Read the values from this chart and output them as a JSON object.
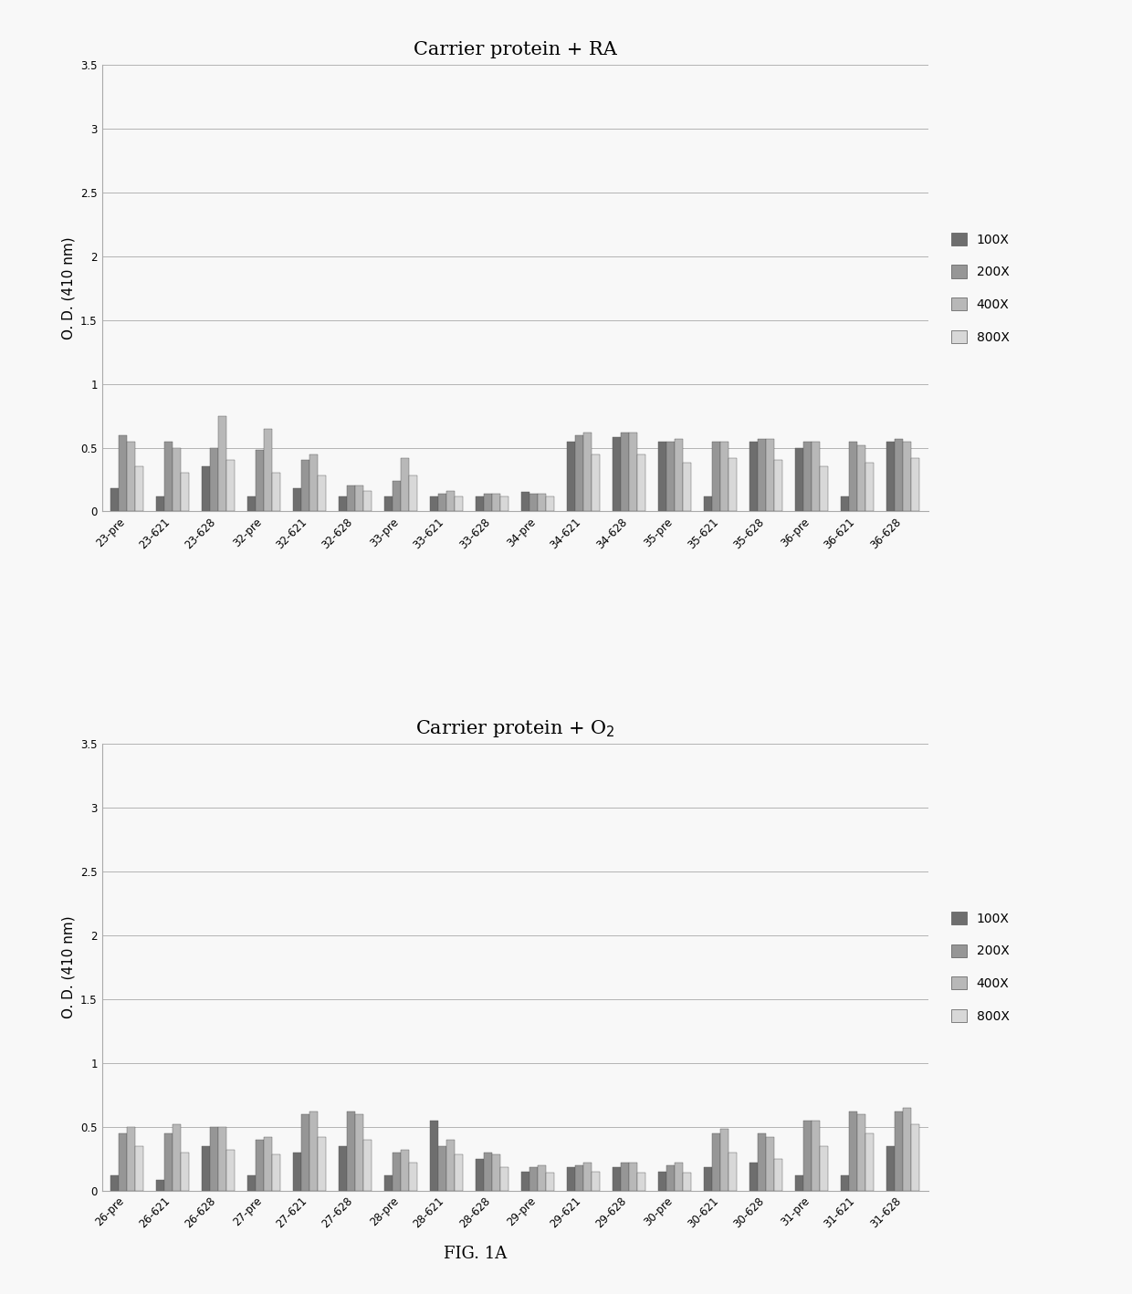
{
  "chart1": {
    "title": "Carrier protein + RA",
    "categories": [
      "23-pre",
      "23-621",
      "23-628",
      "32-pre",
      "32-621",
      "32-628",
      "33-pre",
      "33-621",
      "33-628",
      "34-pre",
      "34-621",
      "34-628",
      "35-pre",
      "35-621",
      "35-628",
      "36-pre",
      "36-621",
      "36-628"
    ],
    "data": {
      "100X": [
        0.18,
        0.12,
        0.35,
        0.12,
        0.18,
        0.12,
        0.12,
        0.12,
        0.12,
        0.15,
        0.55,
        0.58,
        0.55,
        0.12,
        0.55,
        0.5,
        0.12,
        0.55
      ],
      "200X": [
        0.6,
        0.55,
        0.5,
        0.48,
        0.4,
        0.2,
        0.24,
        0.14,
        0.14,
        0.14,
        0.6,
        0.62,
        0.55,
        0.55,
        0.57,
        0.55,
        0.55,
        0.57
      ],
      "400X": [
        0.55,
        0.5,
        0.75,
        0.65,
        0.45,
        0.2,
        0.42,
        0.16,
        0.14,
        0.14,
        0.62,
        0.62,
        0.57,
        0.55,
        0.57,
        0.55,
        0.52,
        0.55
      ],
      "800X": [
        0.35,
        0.3,
        0.4,
        0.3,
        0.28,
        0.16,
        0.28,
        0.12,
        0.12,
        0.12,
        0.45,
        0.45,
        0.38,
        0.42,
        0.4,
        0.35,
        0.38,
        0.42
      ]
    }
  },
  "chart2": {
    "title": "Carrier protein + O$_2$",
    "categories": [
      "26-pre",
      "26-621",
      "26-628",
      "27-pre",
      "27-621",
      "27-628",
      "28-pre",
      "28-621",
      "28-628",
      "29-pre",
      "29-621",
      "29-628",
      "30-pre",
      "30-621",
      "30-628",
      "31-pre",
      "31-621",
      "31-628"
    ],
    "data": {
      "100X": [
        0.12,
        0.08,
        0.35,
        0.12,
        0.3,
        0.35,
        0.12,
        0.55,
        0.25,
        0.15,
        0.18,
        0.18,
        0.15,
        0.18,
        0.22,
        0.12,
        0.12,
        0.35
      ],
      "200X": [
        0.45,
        0.45,
        0.5,
        0.4,
        0.6,
        0.62,
        0.3,
        0.35,
        0.3,
        0.18,
        0.2,
        0.22,
        0.2,
        0.45,
        0.45,
        0.55,
        0.62,
        0.62
      ],
      "400X": [
        0.5,
        0.52,
        0.5,
        0.42,
        0.62,
        0.6,
        0.32,
        0.4,
        0.28,
        0.2,
        0.22,
        0.22,
        0.22,
        0.48,
        0.42,
        0.55,
        0.6,
        0.65
      ],
      "800X": [
        0.35,
        0.3,
        0.32,
        0.28,
        0.42,
        0.4,
        0.22,
        0.28,
        0.18,
        0.14,
        0.15,
        0.14,
        0.14,
        0.3,
        0.25,
        0.35,
        0.45,
        0.52
      ]
    }
  },
  "ylabel": "O. D. (410 nm)",
  "ylim": [
    0,
    3.5
  ],
  "yticks": [
    0,
    0.5,
    1,
    1.5,
    2,
    2.5,
    3,
    3.5
  ],
  "ytick_labels": [
    "0",
    "0.5",
    "1",
    "1.5",
    "2",
    "2.5",
    "3",
    "3.5"
  ],
  "legend_labels": [
    "100X",
    "200X",
    "400X",
    "800X"
  ],
  "bar_colors": [
    "#6e6e6e",
    "#969696",
    "#b8b8b8",
    "#d8d8d8"
  ],
  "hatch_patterns": [
    "///",
    "...",
    "xxx",
    "   "
  ],
  "bar_width": 0.18,
  "figcaption": "FIG. 1A",
  "background_color": "#f8f8f8",
  "title_fontsize": 15,
  "axis_fontsize": 11,
  "tick_fontsize": 8.5,
  "legend_fontsize": 10
}
